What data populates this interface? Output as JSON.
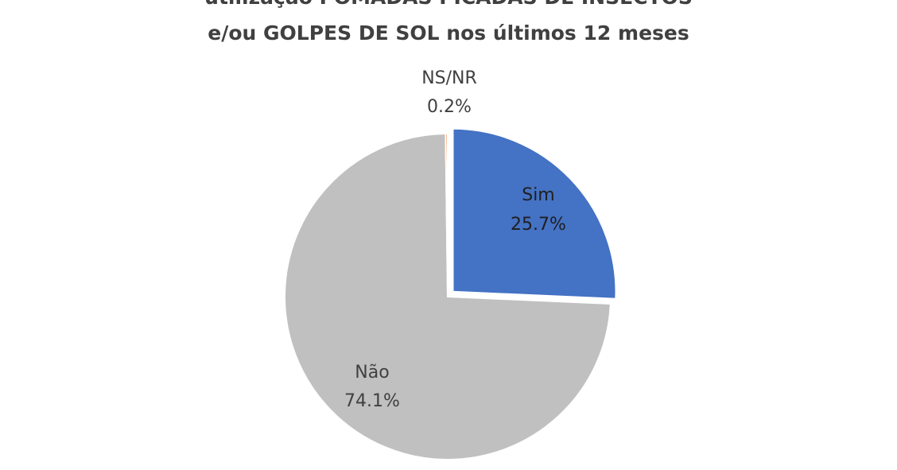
{
  "chart_data": {
    "type": "pie",
    "title_lines": [
      "utilização  POMADAS PICADAS DE INSECTOS",
      "e/ou GOLPES DE SOL nos últimos 12 meses"
    ],
    "slices": [
      {
        "label": "Sim",
        "value": 25.7,
        "value_text": "25.7%",
        "color": "#4472c4",
        "label_color": "#1f1f1f",
        "exploded": true
      },
      {
        "label": "Não",
        "value": 74.1,
        "value_text": "74.1%",
        "color": "#c0c0c0",
        "label_color": "#404040",
        "exploded": false
      },
      {
        "label": "NS/NR",
        "value": 0.2,
        "value_text": "0.2%",
        "color": "#ed7d31",
        "label_color": "#404040",
        "exploded": false
      }
    ]
  }
}
